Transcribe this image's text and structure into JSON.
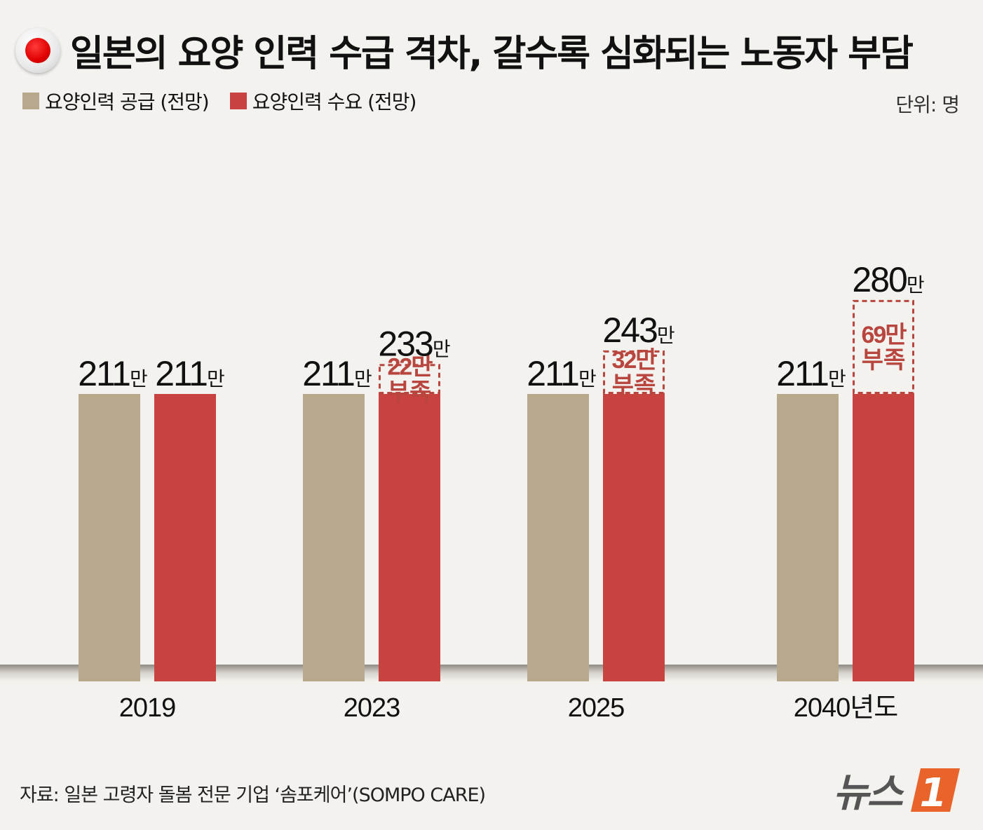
{
  "title": "일본의 요양 인력 수급 격차, 갈수록 심화되는 노동자 부담",
  "unit": "단위: 명",
  "source": "자료: 일본 고령자 돌봄 전문 기업 ‘솜포케어’(SOMPO CARE)",
  "logo": {
    "text": "뉴스",
    "mark": "1"
  },
  "colors": {
    "supply": "#b8a88c",
    "demand": "#c8433f",
    "background": "#f4f2ee",
    "gap": "#b9453f"
  },
  "chart_data": {
    "type": "bar",
    "title": "일본의 요양 인력 수급 격차, 갈수록 심화되는 노동자 부담",
    "categories": [
      "2019",
      "2023",
      "2025",
      "2040년도"
    ],
    "series": [
      {
        "name": "요양인력 공급 (전망)",
        "values": [
          211,
          211,
          211,
          211
        ],
        "labels": [
          "211",
          "211",
          "211",
          "211"
        ]
      },
      {
        "name": "요양인력 수요 (전망)",
        "values": [
          211,
          233,
          243,
          280
        ],
        "labels": [
          "211",
          "233",
          "243",
          "280"
        ]
      }
    ],
    "value_unit": "만",
    "gaps": [
      {
        "category": "2023",
        "value": "22만",
        "text": "부족"
      },
      {
        "category": "2025",
        "value": "32만",
        "text": "부족"
      },
      {
        "category": "2040년도",
        "value": "69만",
        "text": "부족"
      }
    ],
    "xlabel": "",
    "ylabel": "",
    "legend": "top-left",
    "grid": false
  }
}
